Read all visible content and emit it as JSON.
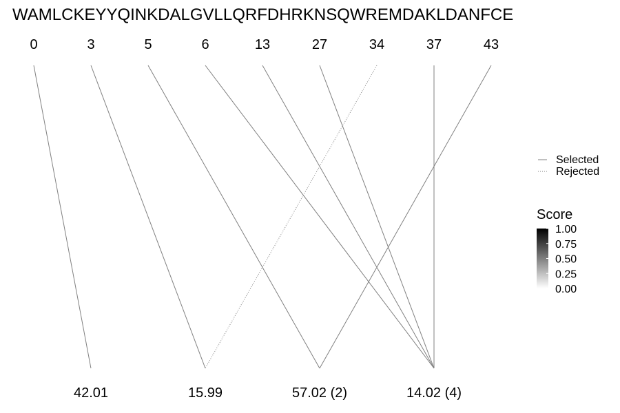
{
  "chart_data": {
    "type": "diagram",
    "sequence": "WAMLCKEYYQINKDALGVLLQRFDHRKNSQWREMDAKLDANFCE",
    "top_positions": [
      0,
      3,
      5,
      6,
      13,
      27,
      34,
      37,
      43
    ],
    "bottom_masses": [
      "42.01",
      "15.99",
      "57.02 (2)",
      "14.02 (4)"
    ],
    "connections": [
      {
        "from": 0,
        "to": 0,
        "status": "selected"
      },
      {
        "from": 1,
        "to": 1,
        "status": "selected"
      },
      {
        "from": 2,
        "to": 2,
        "status": "selected"
      },
      {
        "from": 3,
        "to": 3,
        "status": "selected"
      },
      {
        "from": 4,
        "to": 3,
        "status": "selected"
      },
      {
        "from": 5,
        "to": 3,
        "status": "selected"
      },
      {
        "from": 6,
        "to": 1,
        "status": "rejected"
      },
      {
        "from": 7,
        "to": 3,
        "status": "selected"
      },
      {
        "from": 8,
        "to": 2,
        "status": "selected"
      }
    ],
    "line_legend": [
      {
        "label": "Selected",
        "style": "solid"
      },
      {
        "label": "Rejected",
        "style": "dotted"
      }
    ],
    "score_legend": {
      "title": "Score",
      "ticks": [
        "1.00",
        "0.75",
        "0.50",
        "0.25",
        "0.00"
      ],
      "color_high": "#000000",
      "color_low": "#ffffff"
    },
    "line_color": "#808080"
  }
}
